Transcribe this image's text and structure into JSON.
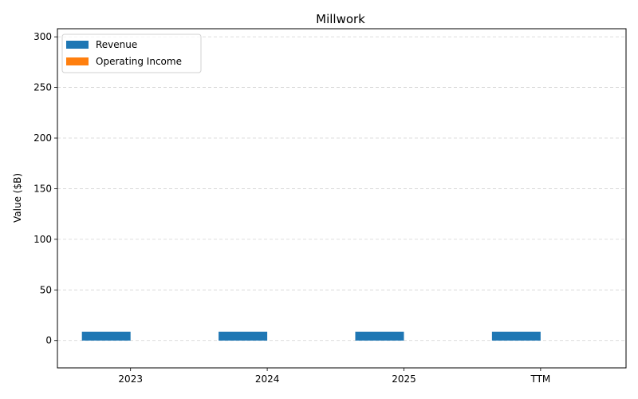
{
  "chart_data": {
    "type": "bar",
    "title": "Millwork",
    "xlabel": "",
    "ylabel": "Value ($B)",
    "categories": [
      "2023",
      "2024",
      "2025",
      "TTM"
    ],
    "series": [
      {
        "name": "Revenue",
        "color": "#1f77b4",
        "values": [
          8.7,
          8.7,
          8.7,
          8.7
        ]
      },
      {
        "name": "Operating Income",
        "color": "#ff7f0e",
        "values": [
          0.0,
          0.0,
          0.0,
          0.0
        ]
      }
    ],
    "ylim": [
      -27,
      308
    ],
    "yticks": [
      0,
      50,
      100,
      150,
      200,
      250,
      300
    ],
    "grid": "y-dashed",
    "legend_position": "top-left"
  }
}
